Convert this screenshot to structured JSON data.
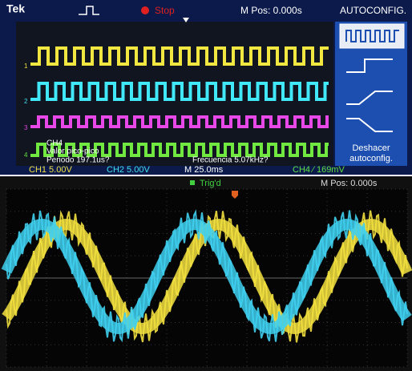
{
  "top_screen": {
    "status_bar": {
      "brand": "Tek",
      "state": "Stop",
      "position": "M Pos: 0.000s",
      "menu_title": "AUTOCONFIG."
    },
    "channel_markers": [
      "1",
      "2",
      "3",
      "4"
    ],
    "measurements": {
      "channel": "CH4",
      "peak_to_peak": "Valor pico-pico",
      "period": "Periodo 197.1us?",
      "frequency": "Frecuencia 5.07kHz?"
    },
    "menu": {
      "undo": [
        "Deshacer",
        "autoconfig."
      ]
    },
    "bottom_bar": {
      "ch1": "CH1 5.00V",
      "ch2": "CH2 5.00V",
      "timebase": "M 25.0ms",
      "trigger": "CH4 ∕ 169mV"
    }
  },
  "bottom_screen": {
    "status": "Trig'd",
    "position": "M Pos: 0.000s"
  }
}
